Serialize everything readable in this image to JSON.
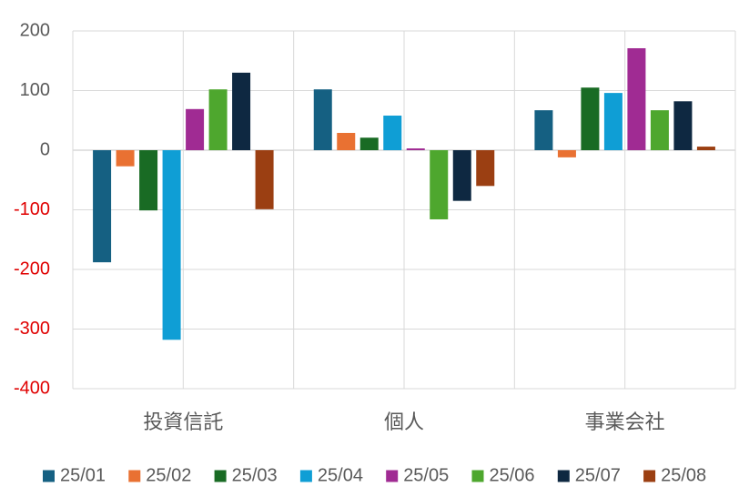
{
  "chart_data": {
    "type": "bar",
    "categories": [
      "投資信託",
      "個人",
      "事業会社"
    ],
    "series": [
      {
        "name": "25/01",
        "color": "#156082",
        "values": [
          -188,
          102,
          67
        ]
      },
      {
        "name": "25/02",
        "color": "#e97132",
        "values": [
          -27,
          29,
          -12
        ]
      },
      {
        "name": "25/03",
        "color": "#196b24",
        "values": [
          -101,
          21,
          105
        ]
      },
      {
        "name": "25/04",
        "color": "#0f9ed5",
        "values": [
          -318,
          58,
          96
        ]
      },
      {
        "name": "25/05",
        "color": "#a02b93",
        "values": [
          69,
          3,
          171
        ]
      },
      {
        "name": "25/06",
        "color": "#4ea72e",
        "values": [
          102,
          -116,
          67
        ]
      },
      {
        "name": "25/07",
        "color": "#0e2841",
        "values": [
          130,
          -85,
          82
        ]
      },
      {
        "name": "25/08",
        "color": "#9b3f12",
        "values": [
          -99,
          -60,
          6
        ]
      }
    ],
    "ylim": [
      -400,
      200
    ],
    "yticks": [
      -400,
      -300,
      -200,
      -100,
      0,
      100,
      200
    ],
    "grid": true,
    "legend": "bottom"
  }
}
